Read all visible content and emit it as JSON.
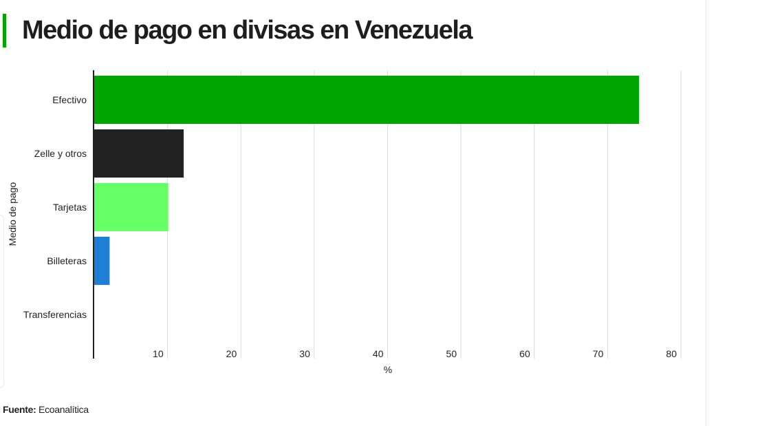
{
  "header": {
    "title": "Medio de pago en divisas en Venezuela"
  },
  "source": {
    "label": "Fuente:",
    "value": "Ecoanalítica"
  },
  "chart_data": {
    "type": "bar",
    "orientation": "horizontal",
    "categories": [
      "Efectivo",
      "Zelle y otros",
      "Tarjetas",
      "Billeteras",
      "Transferencias"
    ],
    "values": [
      74.3,
      12.2,
      10.1,
      2.1,
      0
    ],
    "colors": [
      "#00a500",
      "#222222",
      "#66ff66",
      "#1e7fd6",
      "#cccccc"
    ],
    "xticks": [
      10,
      20,
      30,
      40,
      50,
      60,
      70,
      80
    ],
    "xlabel": "%",
    "ylabel": "Medio de pago",
    "xlim": [
      0,
      80
    ],
    "grid": "vertical",
    "legend": "none"
  }
}
